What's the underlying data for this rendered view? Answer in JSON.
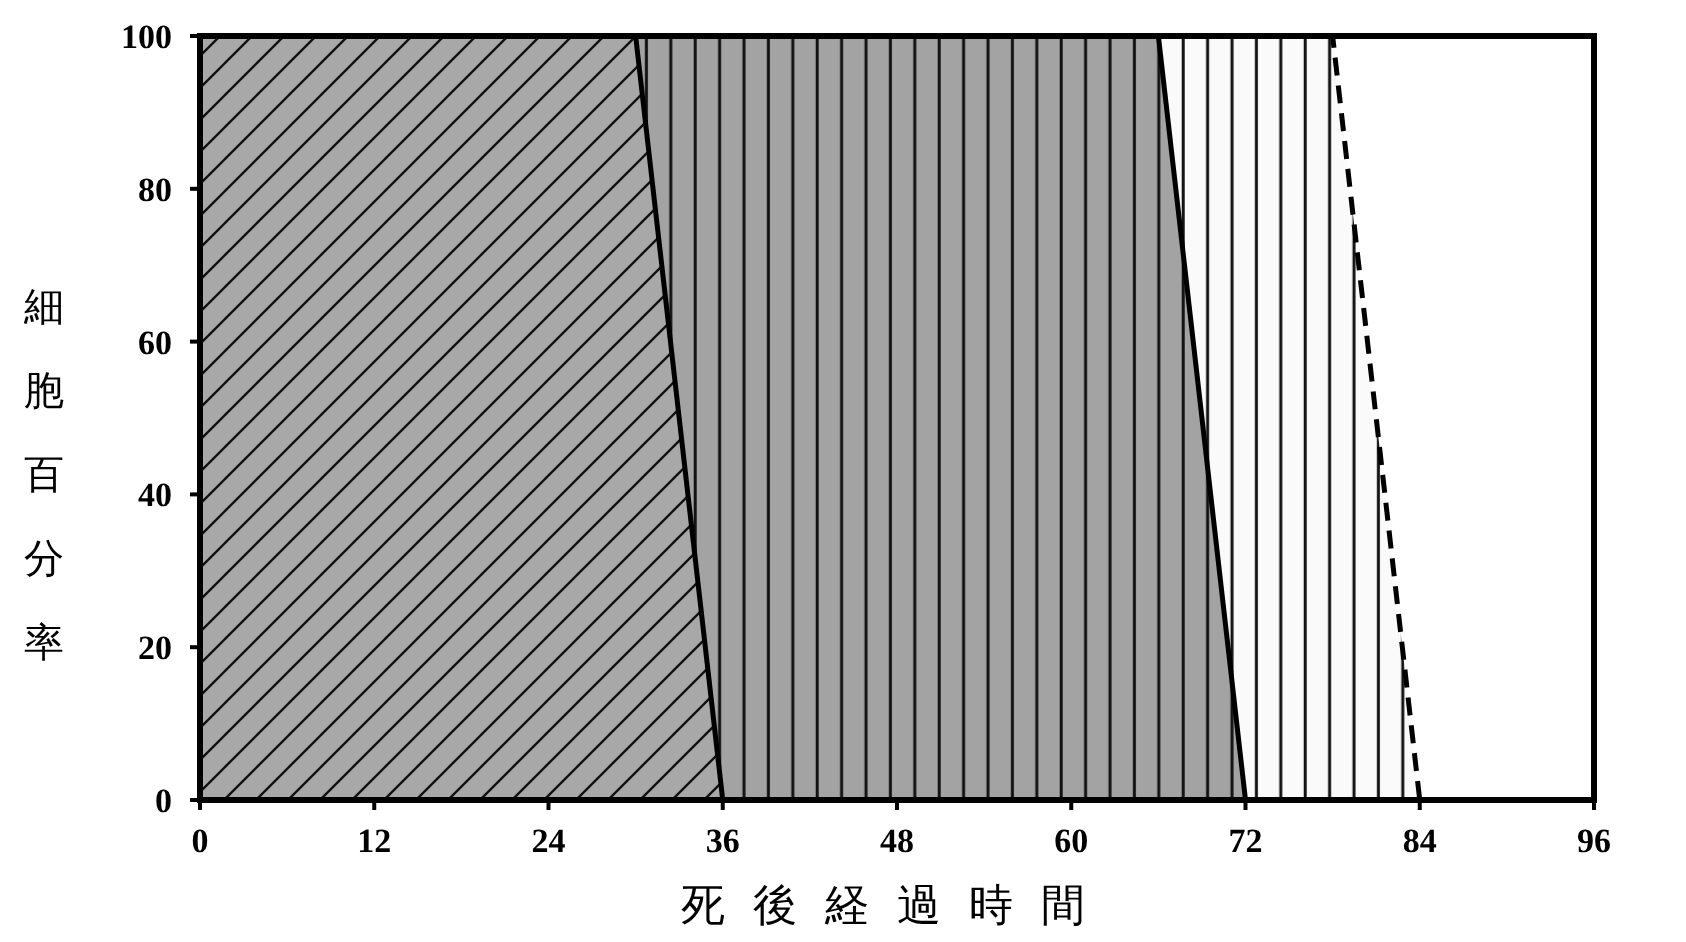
{
  "chart_data": {
    "type": "area",
    "stacked": true,
    "xlabel": "死後経過時間",
    "ylabel": "細胞百分率",
    "x": [
      0,
      30,
      36,
      66,
      72,
      78,
      84
    ],
    "series": [
      {
        "color": "#a8a8a8",
        "line_style": "solid",
        "values": [
          100,
          100,
          0,
          null,
          null,
          null,
          null
        ]
      },
      {
        "color": "#a3a3a3",
        "line_style": "solid",
        "values": [
          null,
          0,
          100,
          100,
          0,
          null,
          null
        ]
      },
      {
        "color": "#fafafa",
        "line_style": "dashed",
        "values": [
          null,
          null,
          null,
          0,
          100,
          100,
          0
        ]
      }
    ],
    "xlim": [
      0,
      96
    ],
    "xticks": [
      0,
      12,
      24,
      36,
      48,
      60,
      72,
      84,
      96
    ],
    "ylim": [
      0,
      100
    ],
    "yticks": [
      0,
      20,
      40,
      60,
      80,
      100
    ],
    "grid": false
  }
}
